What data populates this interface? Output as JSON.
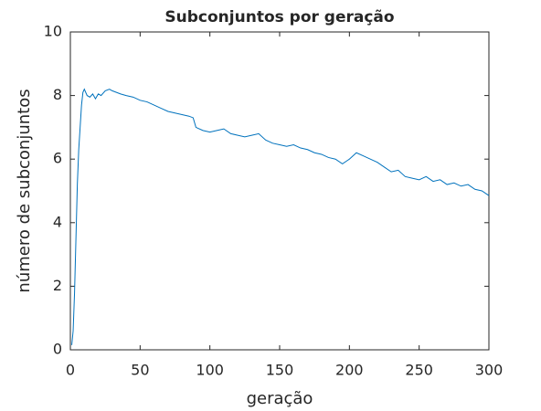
{
  "chart_data": {
    "type": "line",
    "title": "Subconjuntos por geração",
    "xlabel": "geração",
    "ylabel": "número de subconjuntos",
    "x": [
      1,
      2,
      3,
      4,
      5,
      6,
      7,
      8,
      9,
      10,
      12,
      14,
      16,
      18,
      20,
      22,
      25,
      28,
      30,
      33,
      36,
      40,
      45,
      50,
      55,
      60,
      65,
      70,
      75,
      80,
      85,
      88,
      90,
      95,
      100,
      105,
      110,
      115,
      120,
      125,
      130,
      135,
      140,
      145,
      150,
      155,
      160,
      165,
      170,
      175,
      180,
      185,
      190,
      195,
      200,
      205,
      210,
      215,
      220,
      225,
      230,
      235,
      240,
      245,
      250,
      255,
      260,
      265,
      270,
      275,
      280,
      285,
      290,
      295,
      300
    ],
    "series": [
      {
        "name": "subconjuntos",
        "color": "#0072bd",
        "values": [
          0.15,
          0.6,
          1.8,
          3.5,
          5.2,
          6.3,
          7.0,
          7.7,
          8.1,
          8.2,
          8.0,
          7.95,
          8.05,
          7.9,
          8.05,
          8.0,
          8.15,
          8.2,
          8.15,
          8.1,
          8.05,
          8.0,
          7.95,
          7.85,
          7.8,
          7.7,
          7.6,
          7.5,
          7.45,
          7.4,
          7.35,
          7.3,
          7.0,
          6.9,
          6.85,
          6.9,
          6.95,
          6.8,
          6.75,
          6.7,
          6.75,
          6.8,
          6.6,
          6.5,
          6.45,
          6.4,
          6.45,
          6.35,
          6.3,
          6.2,
          6.15,
          6.05,
          6.0,
          5.85,
          6.0,
          6.2,
          6.1,
          6.0,
          5.9,
          5.75,
          5.6,
          5.65,
          5.45,
          5.4,
          5.35,
          5.45,
          5.3,
          5.35,
          5.2,
          5.25,
          5.15,
          5.2,
          5.05,
          5.0,
          4.85
        ]
      }
    ],
    "xlim": [
      0,
      300
    ],
    "xticks": [
      0,
      50,
      100,
      150,
      200,
      250,
      300
    ],
    "ylim": [
      0,
      10
    ],
    "yticks": [
      0,
      2,
      4,
      6,
      8,
      10
    ]
  }
}
